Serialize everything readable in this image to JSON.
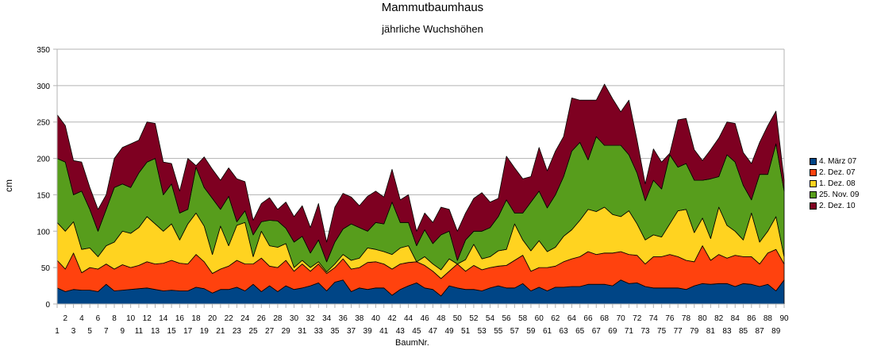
{
  "chart_data": {
    "type": "area",
    "stacked": true,
    "title": "Mammutbaumhaus",
    "subtitle": "jährliche Wuchshöhen",
    "xlabel": "BaumNr.",
    "ylabel": "cm",
    "ylim": [
      0,
      350
    ],
    "yticks": [
      "0",
      "50",
      "100",
      "150",
      "200",
      "250",
      "300",
      "350"
    ],
    "grid": true,
    "legend_position": "right",
    "series": [
      {
        "name": "4. März 07",
        "color": "#004586",
        "values": [
          22,
          17,
          20,
          19,
          19,
          17,
          27,
          18,
          19,
          20,
          21,
          22,
          20,
          18,
          19,
          18,
          18,
          23,
          21,
          15,
          20,
          20,
          23,
          18,
          27,
          17,
          25,
          17,
          25,
          20,
          22,
          25,
          29,
          18,
          30,
          33,
          17,
          22,
          20,
          22,
          22,
          12,
          20,
          25,
          29,
          22,
          20,
          11,
          25,
          22,
          20,
          20,
          18,
          22,
          25,
          22,
          22,
          28,
          18,
          23,
          18,
          23,
          23,
          24,
          24,
          27,
          27,
          27,
          25,
          33,
          28,
          29,
          24,
          22,
          22,
          22,
          22,
          20,
          25,
          28,
          27,
          28,
          28,
          24,
          28,
          27,
          24,
          27,
          18,
          33
        ]
      },
      {
        "name": "2. Dez. 07",
        "color": "#ff420e",
        "values": [
          38,
          31,
          50,
          24,
          31,
          31,
          28,
          30,
          35,
          30,
          32,
          36,
          35,
          38,
          41,
          38,
          37,
          45,
          37,
          27,
          28,
          32,
          37,
          37,
          28,
          46,
          27,
          33,
          35,
          25,
          33,
          20,
          26,
          24,
          20,
          29,
          31,
          28,
          37,
          36,
          33,
          36,
          35,
          32,
          29,
          31,
          25,
          24,
          20,
          33,
          25,
          33,
          29,
          28,
          27,
          31,
          38,
          39,
          27,
          27,
          32,
          29,
          35,
          38,
          41,
          45,
          41,
          43,
          45,
          39,
          40,
          38,
          31,
          43,
          43,
          46,
          43,
          40,
          33,
          52,
          33,
          40,
          35,
          43,
          37,
          38,
          31,
          43,
          57,
          22
        ]
      },
      {
        "name": "1. Dez. 08",
        "color": "#ffd320",
        "values": [
          52,
          52,
          43,
          32,
          27,
          17,
          25,
          37,
          46,
          47,
          52,
          62,
          55,
          44,
          50,
          32,
          55,
          57,
          49,
          26,
          59,
          28,
          48,
          57,
          10,
          37,
          28,
          28,
          23,
          5,
          5,
          5,
          3,
          2,
          5,
          6,
          12,
          13,
          20,
          17,
          17,
          20,
          22,
          23,
          0,
          12,
          10,
          12,
          17,
          0,
          16,
          29,
          15,
          15,
          21,
          22,
          50,
          21,
          28,
          37,
          22,
          26,
          35,
          40,
          50,
          58,
          59,
          63,
          53,
          48,
          60,
          43,
          33,
          30,
          27,
          42,
          63,
          70,
          40,
          38,
          30,
          65,
          45,
          33,
          23,
          60,
          30,
          30,
          45,
          10
        ]
      },
      {
        "name": "25. Nov. 09",
        "color": "#579d1c",
        "values": [
          88,
          95,
          37,
          80,
          53,
          35,
          50,
          75,
          65,
          63,
          75,
          75,
          90,
          50,
          55,
          37,
          20,
          63,
          53,
          77,
          23,
          68,
          5,
          16,
          30,
          13,
          35,
          36,
          21,
          35,
          33,
          20,
          30,
          14,
          30,
          35,
          50,
          42,
          23,
          37,
          38,
          72,
          35,
          32,
          22,
          37,
          28,
          48,
          38,
          5,
          27,
          18,
          38,
          40,
          47,
          68,
          15,
          37,
          67,
          68,
          60,
          72,
          82,
          108,
          107,
          68,
          103,
          85,
          95,
          98,
          77,
          70,
          54,
          75,
          66,
          95,
          60,
          63,
          72,
          52,
          82,
          42,
          97,
          95,
          75,
          18,
          93,
          78,
          100,
          90
        ]
      },
      {
        "name": "2. Dez. 10",
        "color": "#7e0021",
        "values": [
          60,
          50,
          47,
          40,
          30,
          30,
          20,
          40,
          50,
          60,
          45,
          55,
          48,
          45,
          28,
          30,
          70,
          2,
          42,
          40,
          40,
          39,
          59,
          40,
          20,
          25,
          31,
          16,
          36,
          35,
          42,
          35,
          50,
          27,
          48,
          49,
          37,
          30,
          48,
          43,
          37,
          45,
          31,
          38,
          20,
          23,
          29,
          38,
          30,
          40,
          37,
          45,
          53,
          35,
          25,
          60,
          62,
          47,
          35,
          60,
          51,
          60,
          55,
          73,
          58,
          82,
          50,
          84,
          64,
          46,
          75,
          45,
          23,
          43,
          37,
          2,
          65,
          62,
          42,
          27,
          40,
          53,
          45,
          53,
          45,
          50,
          44,
          67,
          45,
          15
        ]
      }
    ],
    "categories": [
      "1",
      "2",
      "3",
      "4",
      "5",
      "6",
      "7",
      "8",
      "9",
      "10",
      "11",
      "12",
      "13",
      "14",
      "15",
      "16",
      "17",
      "18",
      "19",
      "20",
      "21",
      "22",
      "23",
      "24",
      "25",
      "26",
      "27",
      "28",
      "29",
      "30",
      "31",
      "32",
      "33",
      "34",
      "35",
      "36",
      "37",
      "38",
      "39",
      "40",
      "41",
      "42",
      "43",
      "44",
      "45",
      "46",
      "47",
      "48",
      "49",
      "50",
      "51",
      "52",
      "53",
      "54",
      "55",
      "56",
      "57",
      "58",
      "59",
      "60",
      "61",
      "62",
      "63",
      "64",
      "65",
      "66",
      "67",
      "68",
      "69",
      "70",
      "71",
      "72",
      "73",
      "74",
      "75",
      "76",
      "77",
      "78",
      "79",
      "80",
      "81",
      "82",
      "83",
      "84",
      "85",
      "86",
      "87",
      "88",
      "89",
      "90"
    ]
  }
}
